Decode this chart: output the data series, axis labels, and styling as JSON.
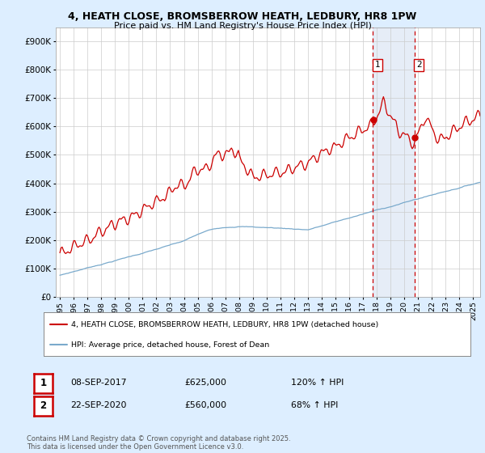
{
  "title_line1": "4, HEATH CLOSE, BROMSBERROW HEATH, LEDBURY, HR8 1PW",
  "title_line2": "Price paid vs. HM Land Registry's House Price Index (HPI)",
  "legend_label_red": "4, HEATH CLOSE, BROMSBERROW HEATH, LEDBURY, HR8 1PW (detached house)",
  "legend_label_blue": "HPI: Average price, detached house, Forest of Dean",
  "annotation1_label": "1",
  "annotation1_date": "08-SEP-2017",
  "annotation1_price": "£625,000",
  "annotation1_hpi": "120% ↑ HPI",
  "annotation2_label": "2",
  "annotation2_date": "22-SEP-2020",
  "annotation2_price": "£560,000",
  "annotation2_hpi": "68% ↑ HPI",
  "footer": "Contains HM Land Registry data © Crown copyright and database right 2025.\nThis data is licensed under the Open Government Licence v3.0.",
  "red_color": "#cc0000",
  "blue_color": "#7aaacc",
  "background_color": "#ddeeff",
  "plot_bg_color": "#ffffff",
  "vline_color": "#cc0000",
  "span_color": "#c8d8ee",
  "ylim": [
    0,
    950000
  ],
  "yticks": [
    0,
    100000,
    200000,
    300000,
    400000,
    500000,
    600000,
    700000,
    800000,
    900000
  ],
  "ytick_labels": [
    "£0",
    "£100K",
    "£200K",
    "£300K",
    "£400K",
    "£500K",
    "£600K",
    "£700K",
    "£800K",
    "£900K"
  ],
  "xmin_year": 1994.7,
  "xmax_year": 2025.5,
  "xticks": [
    1995,
    1996,
    1997,
    1998,
    1999,
    2000,
    2001,
    2002,
    2003,
    2004,
    2005,
    2006,
    2007,
    2008,
    2009,
    2010,
    2011,
    2012,
    2013,
    2014,
    2015,
    2016,
    2017,
    2018,
    2019,
    2020,
    2021,
    2022,
    2023,
    2024,
    2025
  ],
  "sale1_year": 2017.69,
  "sale1_price": 625000,
  "sale2_year": 2020.72,
  "sale2_price": 560000
}
